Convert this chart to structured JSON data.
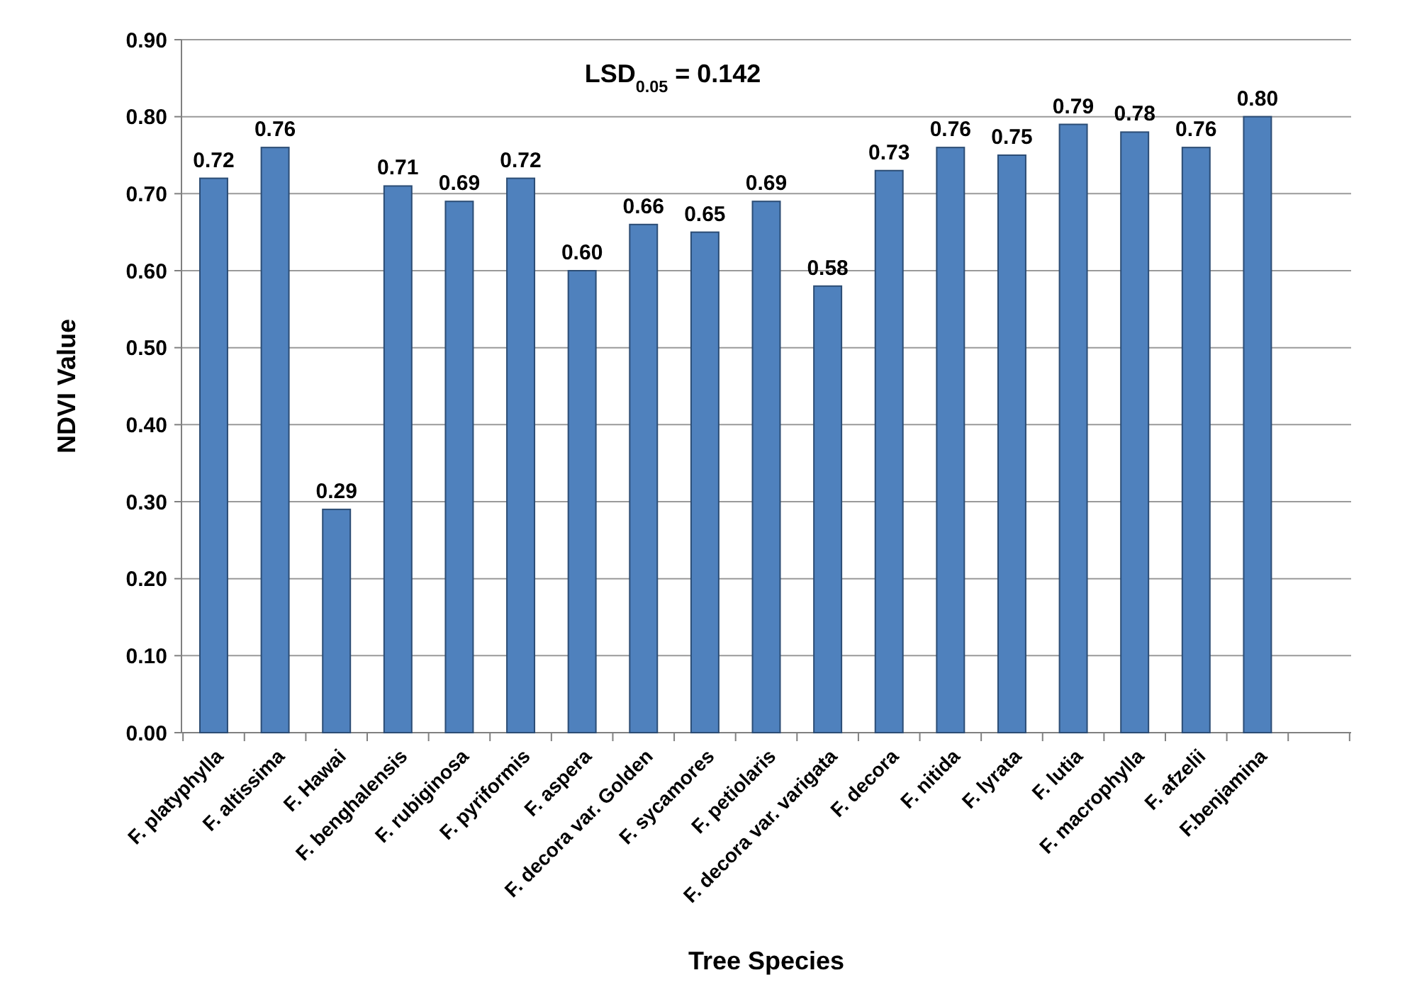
{
  "chart_data": {
    "type": "bar",
    "xlabel": "Tree Species",
    "ylabel": "NDVI Value",
    "annotations": [
      "LSD$_{0.05}$ = 0.142"
    ],
    "categories": [
      "F. platyphylla",
      "F. altissima",
      "F. Hawai",
      "F. benghalensis",
      "F. rubiginosa",
      "F. pyriformis",
      "F. aspera",
      "F. decora var. Golden",
      "F. sycamores",
      "F. petiolaris",
      "F. decora var. varigata",
      "F. decora",
      "F. nitida",
      "F. lyrata",
      "F. lutia",
      "F. macrophylla",
      "F. afzelii",
      "F.benjamina",
      null
    ],
    "values": [
      0.72,
      0.76,
      0.29,
      0.71,
      0.69,
      0.72,
      0.6,
      0.66,
      0.65,
      0.69,
      0.58,
      0.73,
      0.76,
      0.75,
      0.79,
      0.78,
      0.76,
      0.8,
      null
    ],
    "value_labels": [
      "0.72",
      "0.76",
      "0.29",
      "0.71",
      "0.69",
      "0.72",
      "0.60",
      "0.66",
      "0.65",
      "0.69",
      "0.58",
      "0.73",
      "0.76",
      "0.75",
      "0.79",
      "0.78",
      "0.76",
      "0.80",
      null
    ],
    "color": "#4f81bd",
    "ylim": [
      0,
      0.9
    ],
    "yticks": [
      {
        "value": 0,
        "label": "0.00"
      },
      {
        "value": 0.1,
        "label": "0.10"
      },
      {
        "value": 0.2,
        "label": "0.20"
      },
      {
        "value": 0.3,
        "label": "0.30"
      },
      {
        "value": 0.4,
        "label": "0.40"
      },
      {
        "value": 0.5,
        "label": "0.50"
      },
      {
        "value": 0.6,
        "label": "0.60"
      },
      {
        "value": 0.7,
        "label": "0.70"
      },
      {
        "value": 0.8,
        "label": "0.80"
      },
      {
        "value": 0.9,
        "label": "0.90"
      }
    ],
    "grid": "y"
  }
}
